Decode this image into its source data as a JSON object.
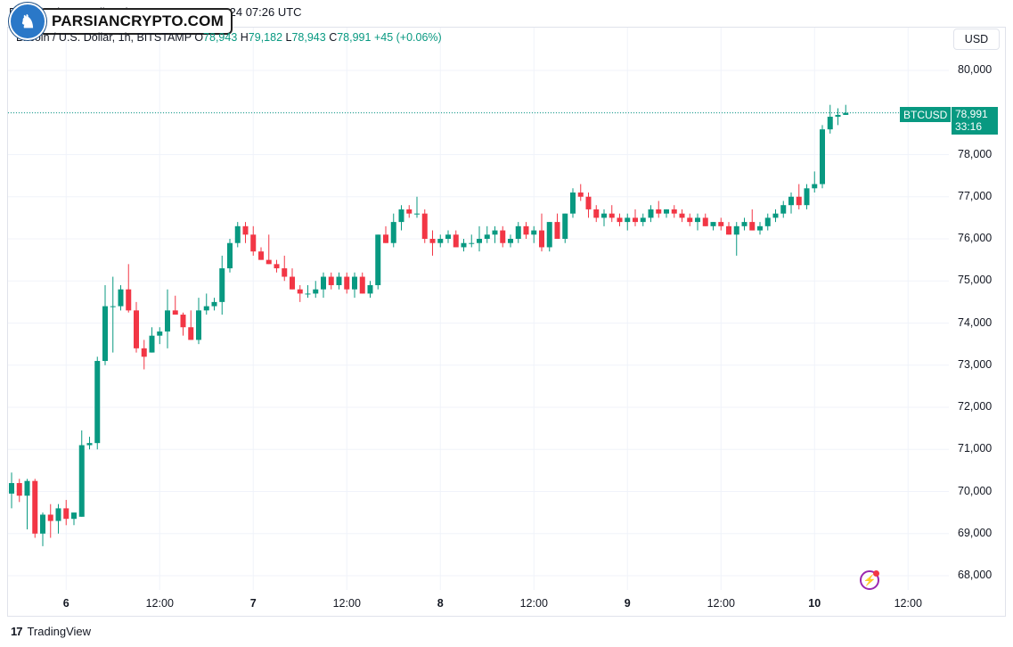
{
  "header": {
    "source_line": "Published on TradingView.com, Nov 10, 2024 07:26 UTC",
    "watermark_text": "PARSIANCRYPTO.COM"
  },
  "symbol": {
    "description": "Bitcoin / U.S. Dollar, 1h, BITSTAMP",
    "o_label": "O",
    "o_value": "78,943",
    "h_label": "H",
    "h_value": "79,182",
    "l_label": "L",
    "l_value": "78,943",
    "c_label": "C",
    "c_value": "78,991",
    "change": "+45 (+0.06%)"
  },
  "currency_button": "USD",
  "last_price": {
    "ticker": "BTCUSD",
    "value": "78,991",
    "countdown": "33:16"
  },
  "footer": {
    "brand": "TradingView",
    "logo_glyph": "17"
  },
  "colors": {
    "up": "#089981",
    "down": "#f23645",
    "grid": "#f0f3fa"
  },
  "chart_data": {
    "type": "candlestick",
    "symbol": "Bitcoin / U.S. Dollar",
    "interval": "1h",
    "exchange": "BITSTAMP",
    "y_tick_labels": [
      "80,000",
      "79,000",
      "78,000",
      "77,000",
      "76,000",
      "75,000",
      "74,000",
      "73,000",
      "72,000",
      "71,000",
      "70,000",
      "69,000",
      "68,000"
    ],
    "y_ticks": [
      80000,
      79000,
      78000,
      77000,
      76000,
      75000,
      74000,
      73000,
      72000,
      71000,
      70000,
      69000,
      68000
    ],
    "x_tick_labels": [
      {
        "label": "6",
        "bar": 8,
        "bold": true
      },
      {
        "label": "12:00",
        "bar": 20,
        "bold": false
      },
      {
        "label": "7",
        "bar": 32,
        "bold": true
      },
      {
        "label": "12:00",
        "bar": 44,
        "bold": false
      },
      {
        "label": "8",
        "bar": 56,
        "bold": true
      },
      {
        "label": "12:00",
        "bar": 68,
        "bold": false
      },
      {
        "label": "9",
        "bar": 80,
        "bold": true
      },
      {
        "label": "12:00",
        "bar": 92,
        "bold": false
      },
      {
        "label": "10",
        "bar": 104,
        "bold": true
      },
      {
        "label": "12:00",
        "bar": 116,
        "bold": false
      }
    ],
    "candles": [
      [
        69950,
        70450,
        69600,
        70200
      ],
      [
        70200,
        70300,
        69750,
        69900
      ],
      [
        69900,
        70300,
        69100,
        70250
      ],
      [
        70250,
        70300,
        68900,
        69000
      ],
      [
        69000,
        69500,
        68700,
        69450
      ],
      [
        69450,
        69700,
        68900,
        69300
      ],
      [
        69300,
        69700,
        69000,
        69600
      ],
      [
        69600,
        69800,
        69200,
        69350
      ],
      [
        69350,
        69500,
        69200,
        69500
      ],
      [
        69400,
        71450,
        69400,
        71100
      ],
      [
        71100,
        71300,
        71000,
        71150
      ],
      [
        71150,
        73200,
        71000,
        73100
      ],
      [
        73100,
        74900,
        73000,
        74400
      ],
      [
        74400,
        75100,
        73300,
        74400
      ],
      [
        74400,
        74900,
        74300,
        74800
      ],
      [
        74800,
        75400,
        74250,
        74300
      ],
      [
        74300,
        74500,
        73300,
        73400
      ],
      [
        73400,
        73600,
        72900,
        73200
      ],
      [
        73300,
        73900,
        73300,
        73700
      ],
      [
        73700,
        73900,
        73500,
        73800
      ],
      [
        73800,
        74800,
        73400,
        74300
      ],
      [
        74300,
        74650,
        74200,
        74200
      ],
      [
        74200,
        74250,
        73700,
        73900
      ],
      [
        73900,
        74300,
        73600,
        73600
      ],
      [
        73600,
        74600,
        73500,
        74300
      ],
      [
        74300,
        74700,
        74200,
        74400
      ],
      [
        74400,
        74600,
        74300,
        74500
      ],
      [
        74500,
        75600,
        74200,
        75300
      ],
      [
        75300,
        76000,
        75200,
        75900
      ],
      [
        75900,
        76400,
        75800,
        76300
      ],
      [
        76300,
        76400,
        75900,
        76100
      ],
      [
        76100,
        76300,
        75600,
        75700
      ],
      [
        75700,
        75800,
        75500,
        75500
      ],
      [
        75500,
        76100,
        75400,
        75400
      ],
      [
        75400,
        75500,
        75200,
        75300
      ],
      [
        75300,
        75600,
        75000,
        75100
      ],
      [
        75100,
        75300,
        74800,
        74800
      ],
      [
        74800,
        74900,
        74500,
        74700
      ],
      [
        74700,
        74900,
        74600,
        74700
      ],
      [
        74700,
        75000,
        74600,
        74800
      ],
      [
        74800,
        75200,
        74600,
        75100
      ],
      [
        75100,
        75200,
        74800,
        74900
      ],
      [
        74900,
        75200,
        74800,
        75100
      ],
      [
        75100,
        75200,
        74700,
        74800
      ],
      [
        74800,
        75200,
        74600,
        75100
      ],
      [
        75100,
        75200,
        74700,
        74700
      ],
      [
        74700,
        75000,
        74600,
        74900
      ],
      [
        74900,
        76100,
        74800,
        76100
      ],
      [
        76100,
        76300,
        75900,
        75900
      ],
      [
        75900,
        76600,
        75800,
        76400
      ],
      [
        76400,
        76800,
        76200,
        76700
      ],
      [
        76700,
        76800,
        76500,
        76600
      ],
      [
        76600,
        77000,
        76500,
        76600
      ],
      [
        76600,
        76700,
        75900,
        76000
      ],
      [
        76000,
        76200,
        75600,
        75900
      ],
      [
        75900,
        76100,
        75800,
        76000
      ],
      [
        76000,
        76200,
        75900,
        76100
      ],
      [
        76100,
        76200,
        75800,
        75800
      ],
      [
        75800,
        76000,
        75700,
        75900
      ],
      [
        75900,
        76100,
        75800,
        75900
      ],
      [
        75900,
        76300,
        75700,
        76000
      ],
      [
        76000,
        76300,
        75900,
        76100
      ],
      [
        76100,
        76300,
        75900,
        76200
      ],
      [
        76200,
        76300,
        75800,
        75900
      ],
      [
        75900,
        76100,
        75800,
        76000
      ],
      [
        76000,
        76400,
        75900,
        76300
      ],
      [
        76300,
        76400,
        76000,
        76100
      ],
      [
        76100,
        76300,
        75900,
        76200
      ],
      [
        76200,
        76600,
        75700,
        75800
      ],
      [
        75800,
        76400,
        75700,
        76400
      ],
      [
        76400,
        76600,
        76000,
        76000
      ],
      [
        76000,
        76600,
        75900,
        76600
      ],
      [
        76600,
        77200,
        76500,
        77100
      ],
      [
        77100,
        77300,
        76900,
        77000
      ],
      [
        77000,
        77100,
        76500,
        76700
      ],
      [
        76700,
        76800,
        76400,
        76500
      ],
      [
        76500,
        76700,
        76300,
        76600
      ],
      [
        76600,
        76800,
        76400,
        76500
      ],
      [
        76500,
        76600,
        76300,
        76400
      ],
      [
        76400,
        76600,
        76200,
        76500
      ],
      [
        76500,
        76700,
        76300,
        76400
      ],
      [
        76400,
        76600,
        76300,
        76500
      ],
      [
        76500,
        76800,
        76400,
        76700
      ],
      [
        76700,
        76900,
        76500,
        76600
      ],
      [
        76600,
        76700,
        76500,
        76700
      ],
      [
        76700,
        76800,
        76500,
        76600
      ],
      [
        76600,
        76700,
        76400,
        76500
      ],
      [
        76500,
        76600,
        76300,
        76400
      ],
      [
        76400,
        76600,
        76200,
        76500
      ],
      [
        76500,
        76600,
        76300,
        76300
      ],
      [
        76300,
        76400,
        76200,
        76400
      ],
      [
        76400,
        76500,
        76200,
        76300
      ],
      [
        76300,
        76400,
        76100,
        76100
      ],
      [
        76100,
        76400,
        75600,
        76300
      ],
      [
        76300,
        76500,
        76200,
        76400
      ],
      [
        76400,
        76700,
        76200,
        76200
      ],
      [
        76200,
        76400,
        76100,
        76300
      ],
      [
        76300,
        76600,
        76200,
        76500
      ],
      [
        76500,
        76700,
        76400,
        76600
      ],
      [
        76600,
        76900,
        76500,
        76800
      ],
      [
        76800,
        77100,
        76600,
        77000
      ],
      [
        77000,
        77300,
        76700,
        76800
      ],
      [
        76800,
        77300,
        76700,
        77200
      ],
      [
        77200,
        77600,
        77100,
        77300
      ],
      [
        77300,
        78700,
        77200,
        78600
      ],
      [
        78600,
        79182,
        78500,
        78900
      ],
      [
        78900,
        79100,
        78700,
        78943
      ],
      [
        78943,
        79182,
        78943,
        78991
      ]
    ]
  }
}
